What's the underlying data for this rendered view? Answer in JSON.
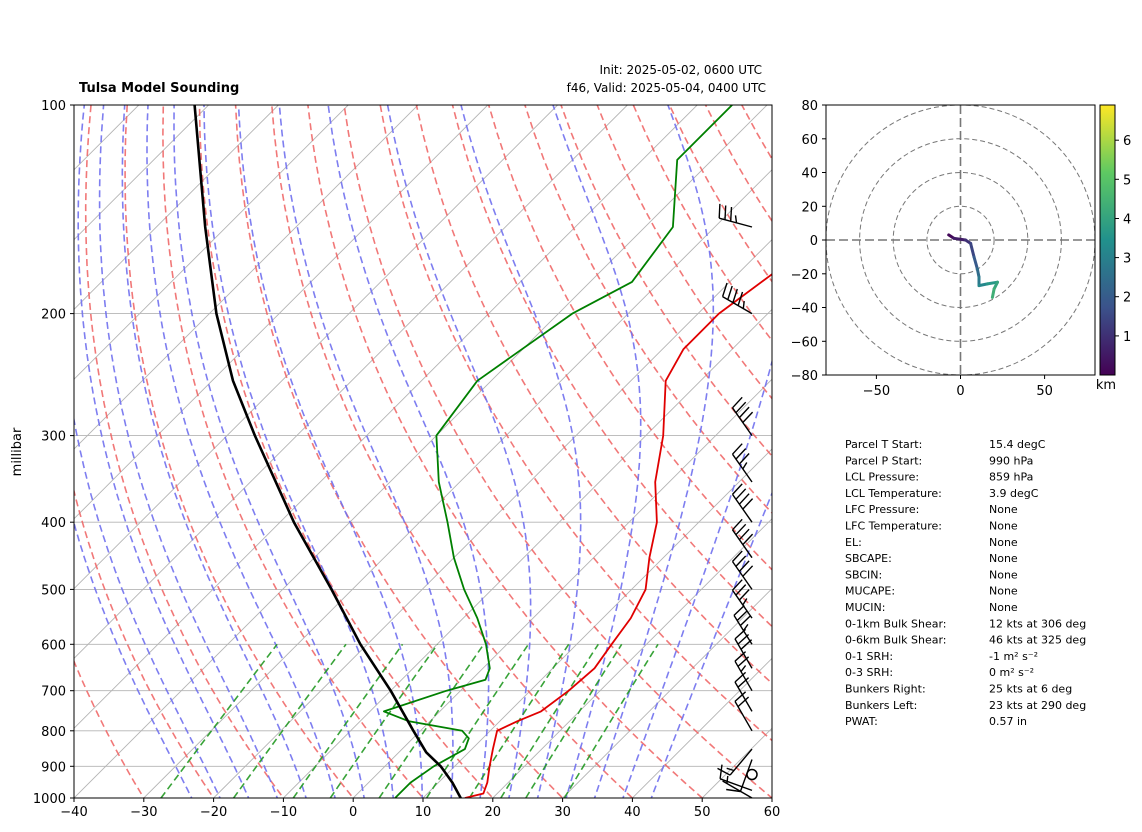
{
  "header": {
    "title": "Tulsa Model Sounding",
    "init": "Init: 2025-05-02, 0600 UTC",
    "valid": "f46, Valid: 2025-05-04, 0400 UTC"
  },
  "chart_data": [
    {
      "type": "line",
      "subtype": "skew-T log-p sounding",
      "ylabel": "millibar",
      "xlim": [
        -40,
        60
      ],
      "ylim": [
        1000,
        100
      ],
      "y_scale": "log",
      "x_ticks": [
        "−40",
        "−30",
        "−20",
        "−10",
        "0",
        "10",
        "20",
        "30",
        "40",
        "50",
        "60"
      ],
      "y_ticks": [
        "100",
        "200",
        "300",
        "400",
        "500",
        "600",
        "700",
        "800",
        "900",
        "1000"
      ],
      "grid": true,
      "series": [
        {
          "color": "#e00000",
          "points": [
            [
              1000,
              16
            ],
            [
              985,
              18
            ],
            [
              950,
              17
            ],
            [
              900,
              15
            ],
            [
              850,
              13
            ],
            [
              800,
              11
            ],
            [
              775,
              12.5
            ],
            [
              750,
              14.5
            ],
            [
              700,
              15.5
            ],
            [
              650,
              16
            ],
            [
              600,
              15
            ],
            [
              550,
              14
            ],
            [
              500,
              12
            ],
            [
              450,
              8
            ],
            [
              400,
              4
            ],
            [
              350,
              -2
            ],
            [
              300,
              -7.5
            ],
            [
              250,
              -15
            ],
            [
              225,
              -17
            ],
            [
              200,
              -17
            ],
            [
              175,
              -15
            ],
            [
              150,
              -2
            ],
            [
              125,
              14
            ],
            [
              100,
              29
            ]
          ]
        },
        {
          "color": "#008000",
          "points": [
            [
              1000,
              6
            ],
            [
              980,
              6
            ],
            [
              950,
              6
            ],
            [
              900,
              7
            ],
            [
              850,
              9
            ],
            [
              820,
              8
            ],
            [
              800,
              6
            ],
            [
              775,
              -3
            ],
            [
              750,
              -8
            ],
            [
              700,
              -2
            ],
            [
              675,
              2
            ],
            [
              650,
              1
            ],
            [
              600,
              -3
            ],
            [
              550,
              -8
            ],
            [
              500,
              -14
            ],
            [
              450,
              -20
            ],
            [
              400,
              -26
            ],
            [
              350,
              -33
            ],
            [
              300,
              -40
            ],
            [
              250,
              -42
            ],
            [
              200,
              -38
            ],
            [
              180,
              -34
            ],
            [
              150,
              -36
            ],
            [
              120,
              -45
            ],
            [
              100,
              -45
            ]
          ]
        },
        {
          "color": "#000000",
          "points": [
            [
              1000,
              15.4
            ],
            [
              950,
              12
            ],
            [
              900,
              8
            ],
            [
              859,
              3.9
            ],
            [
              800,
              -1
            ],
            [
              700,
              -10
            ],
            [
              600,
              -21
            ],
            [
              500,
              -33
            ],
            [
              400,
              -48
            ],
            [
              300,
              -66
            ],
            [
              250,
              -77
            ],
            [
              200,
              -89
            ],
            [
              150,
              -103
            ],
            [
              100,
              -122
            ]
          ]
        }
      ],
      "wind_barbs": [
        {
          "p": 1000,
          "speed": 7,
          "direction": 300
        },
        {
          "p": 975,
          "speed": 12,
          "direction": 290
        },
        {
          "p": 925,
          "speed": 0,
          "direction": 0
        },
        {
          "p": 880,
          "speed": 8,
          "direction": 200
        },
        {
          "p": 850,
          "speed": 14,
          "direction": 220
        },
        {
          "p": 800,
          "speed": 18,
          "direction": 330
        },
        {
          "p": 750,
          "speed": 20,
          "direction": 330
        },
        {
          "p": 700,
          "speed": 24,
          "direction": 330
        },
        {
          "p": 650,
          "speed": 30,
          "direction": 330
        },
        {
          "p": 600,
          "speed": 35,
          "direction": 328
        },
        {
          "p": 550,
          "speed": 35,
          "direction": 325
        },
        {
          "p": 500,
          "speed": 38,
          "direction": 325
        },
        {
          "p": 450,
          "speed": 38,
          "direction": 325
        },
        {
          "p": 400,
          "speed": 38,
          "direction": 325
        },
        {
          "p": 350,
          "speed": 35,
          "direction": 325
        },
        {
          "p": 300,
          "speed": 40,
          "direction": 325
        },
        {
          "p": 200,
          "speed": 45,
          "direction": 300
        },
        {
          "p": 150,
          "speed": 35,
          "direction": 285
        }
      ]
    },
    {
      "type": "line",
      "subtype": "hodograph",
      "xlim": [
        -80,
        80
      ],
      "ylim": [
        -80,
        80
      ],
      "x_ticks": [
        "−50",
        "0",
        "50"
      ],
      "y_ticks": [
        "80",
        "60",
        "40",
        "20",
        "0",
        "−20",
        "−40",
        "−60",
        "−80"
      ],
      "rings": [
        20,
        40,
        60,
        80
      ],
      "colorbar": {
        "label": "km",
        "ticks": [
          "1",
          "2",
          "3",
          "4",
          "5",
          "6"
        ],
        "range": [
          0,
          6.9
        ]
      },
      "points": [
        {
          "u": -7,
          "v": 3,
          "km": 0.0
        },
        {
          "u": -4,
          "v": 1,
          "km": 0.3
        },
        {
          "u": 3,
          "v": 0,
          "km": 0.8
        },
        {
          "u": 6,
          "v": -2,
          "km": 1.2
        },
        {
          "u": 8,
          "v": -10,
          "km": 1.7
        },
        {
          "u": 10,
          "v": -17,
          "km": 2.2
        },
        {
          "u": 11,
          "v": -22,
          "km": 2.6
        },
        {
          "u": 11,
          "v": -27,
          "km": 3.0
        },
        {
          "u": 16,
          "v": -26,
          "km": 3.4
        },
        {
          "u": 22,
          "v": -25,
          "km": 3.9
        },
        {
          "u": 20,
          "v": -29,
          "km": 4.2
        },
        {
          "u": 19,
          "v": -34,
          "km": 4.5
        }
      ]
    }
  ],
  "parameters": [
    {
      "label": "Parcel T Start:",
      "value": "15.4 degC"
    },
    {
      "label": "Parcel P Start:",
      "value": "990 hPa"
    },
    {
      "label": "LCL Pressure:",
      "value": "859 hPa"
    },
    {
      "label": "LCL Temperature:",
      "value": "3.9 degC"
    },
    {
      "label": "LFC Pressure:",
      "value": "None"
    },
    {
      "label": "LFC Temperature:",
      "value": "None"
    },
    {
      "label": "EL:",
      "value": "None"
    },
    {
      "label": "SBCAPE:",
      "value": "None"
    },
    {
      "label": "SBCIN:",
      "value": "None"
    },
    {
      "label": "MUCAPE:",
      "value": "None"
    },
    {
      "label": "MUCIN:",
      "value": "None"
    },
    {
      "label": "0-1km Bulk Shear:",
      "value": "12 kts at 306 deg"
    },
    {
      "label": "0-6km Bulk Shear:",
      "value": "46 kts at 325 deg"
    },
    {
      "label": "0-1 SRH:",
      "value": "-1 m² s⁻²"
    },
    {
      "label": "0-3 SRH:",
      "value": " 0 m² s⁻²"
    },
    {
      "label": "Bunkers Right:",
      "value": "25 kts at 6 deg"
    },
    {
      "label": "Bunkers Left:",
      "value": "23 kts at 290 deg"
    },
    {
      "label": "PWAT:",
      "value": "0.57 in"
    }
  ]
}
